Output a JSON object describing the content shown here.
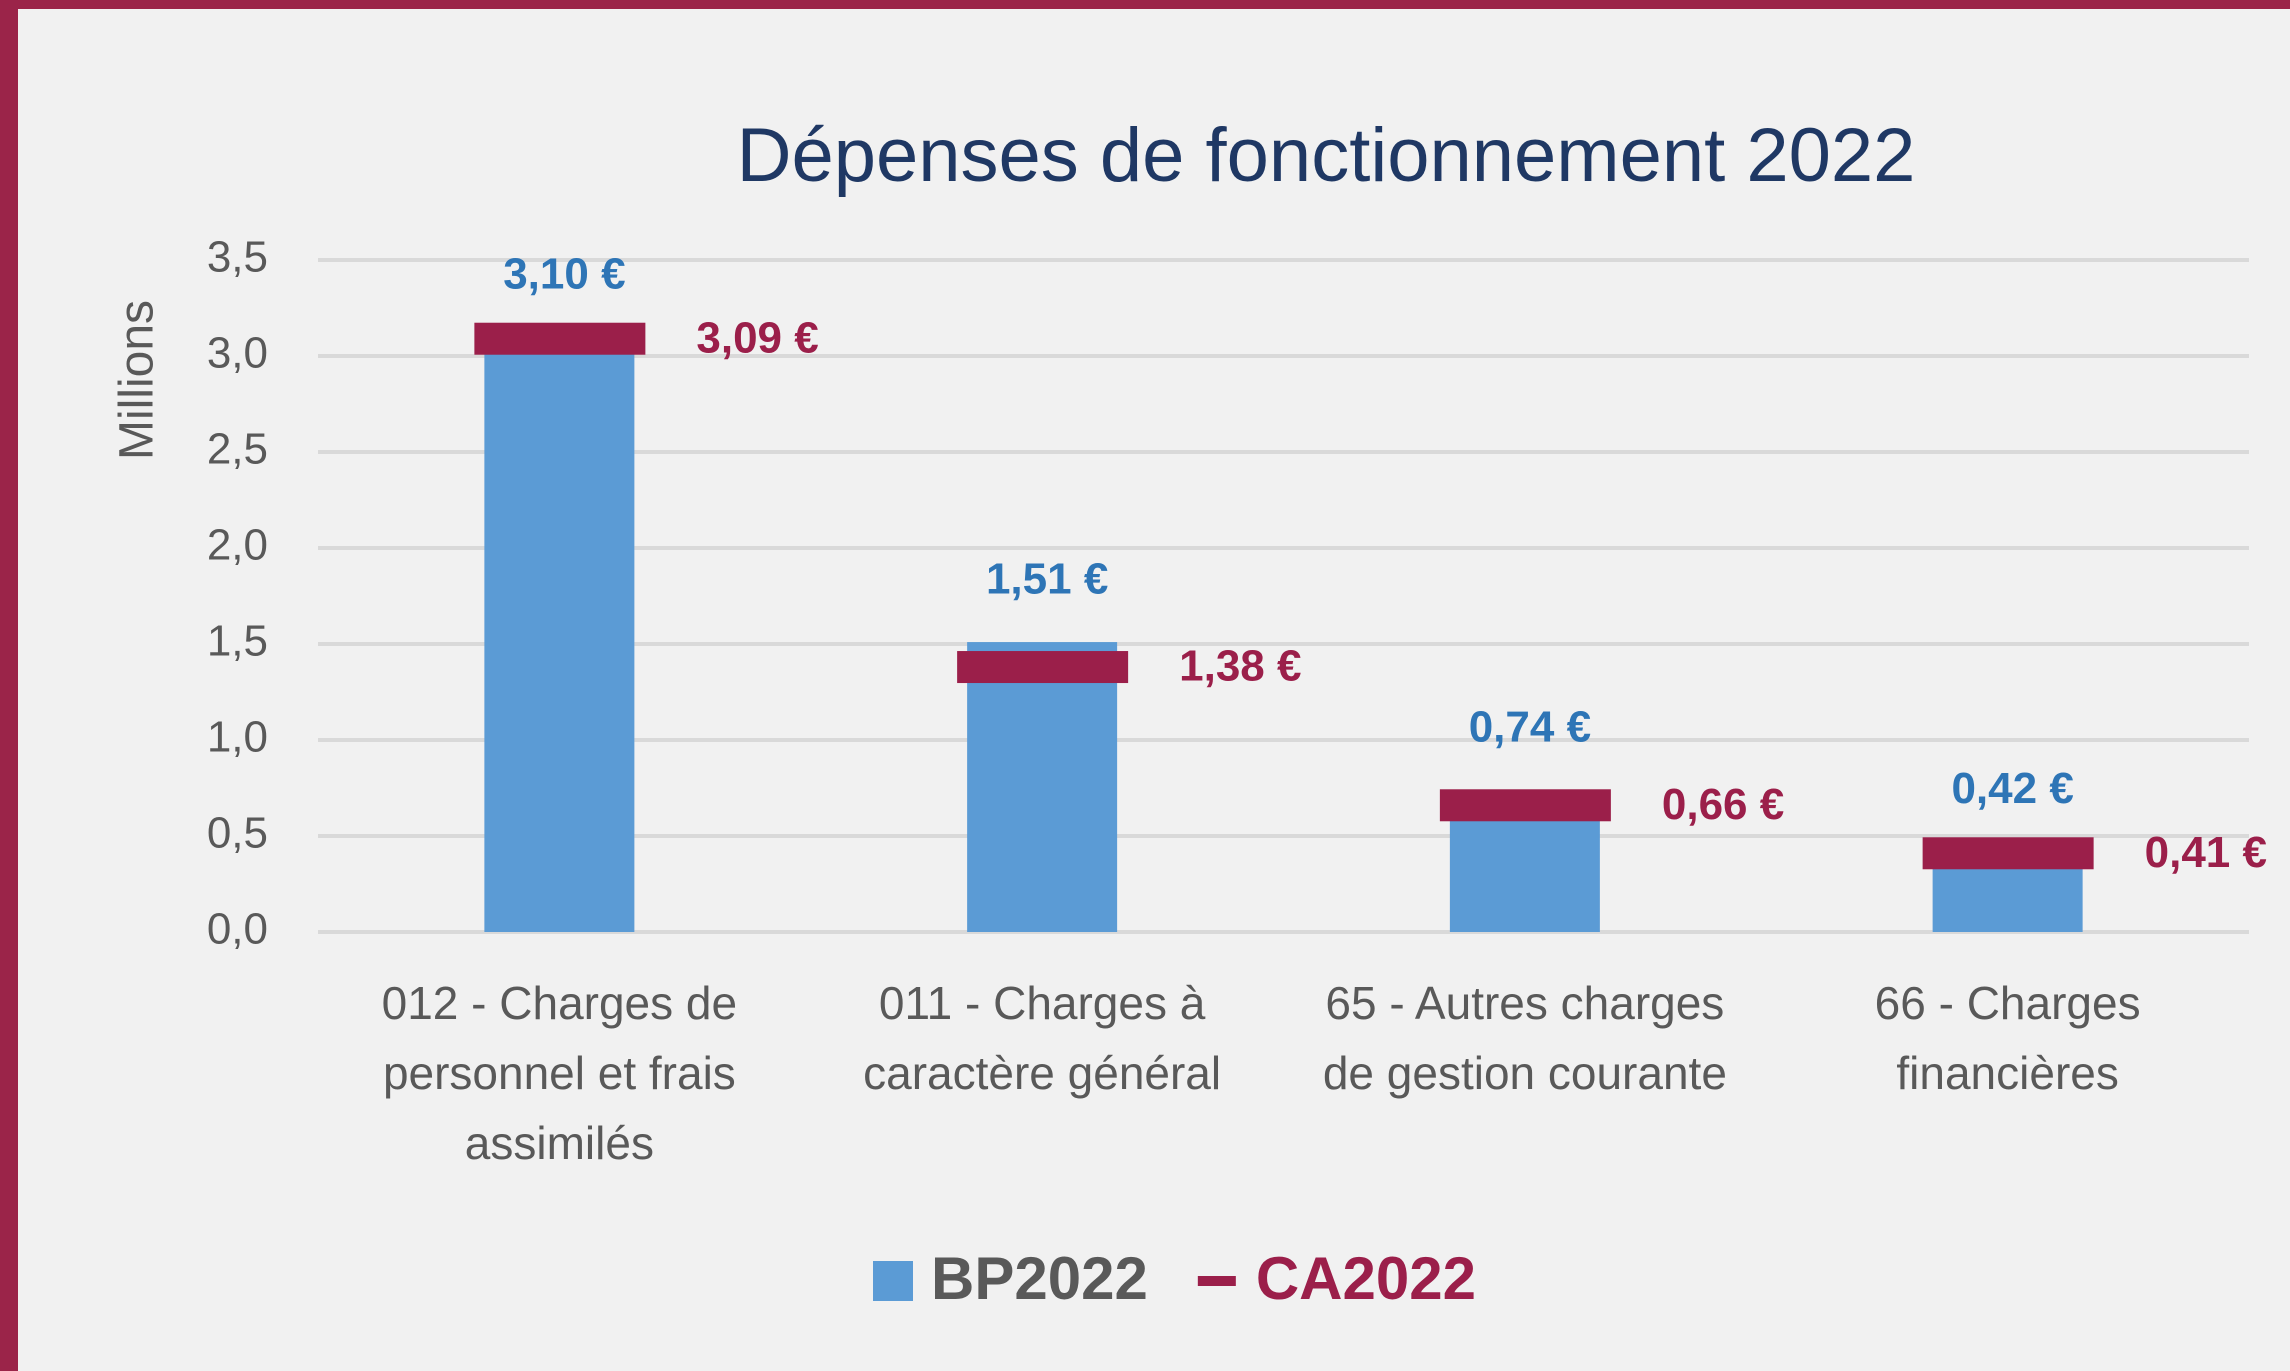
{
  "chart_data": {
    "type": "bar",
    "title": "Dépenses de fonctionnement 2022",
    "y_label": "Millions",
    "categories": [
      [
        "012 - Charges de",
        "personnel et frais",
        "assimilés"
      ],
      [
        "011 - Charges à",
        "caractère général"
      ],
      [
        "65 - Autres charges",
        "de gestion courante"
      ],
      [
        "66 - Charges",
        "financières"
      ]
    ],
    "series": [
      {
        "name": "BP2022",
        "style": "bar",
        "color": "#5b9bd5",
        "label_color": "#2e75b6",
        "values": [
          3.1,
          1.51,
          0.74,
          0.42
        ],
        "value_labels": [
          "3,10 €",
          "1,51 €",
          "0,74 €",
          "0,42 €"
        ]
      },
      {
        "name": "CA2022",
        "style": "marker",
        "color": "#9b1f4a",
        "label_color": "#9b1f4a",
        "values": [
          3.09,
          1.38,
          0.66,
          0.41
        ],
        "value_labels": [
          "3,09 €",
          "1,38 €",
          "0,66 €",
          "0,41 €"
        ]
      }
    ],
    "ylim": [
      0,
      3.5
    ],
    "yticks": [
      {
        "value": 0,
        "label": "0,0"
      },
      {
        "value": 0.5,
        "label": "0,5"
      },
      {
        "value": 1,
        "label": "1,0"
      },
      {
        "value": 1.5,
        "label": "1,5"
      },
      {
        "value": 2,
        "label": "2,0"
      },
      {
        "value": 2.5,
        "label": "2,5"
      },
      {
        "value": 3,
        "label": "3,0"
      },
      {
        "value": 3.5,
        "label": "3,5"
      }
    ],
    "grid": true,
    "legend": "bottom"
  }
}
